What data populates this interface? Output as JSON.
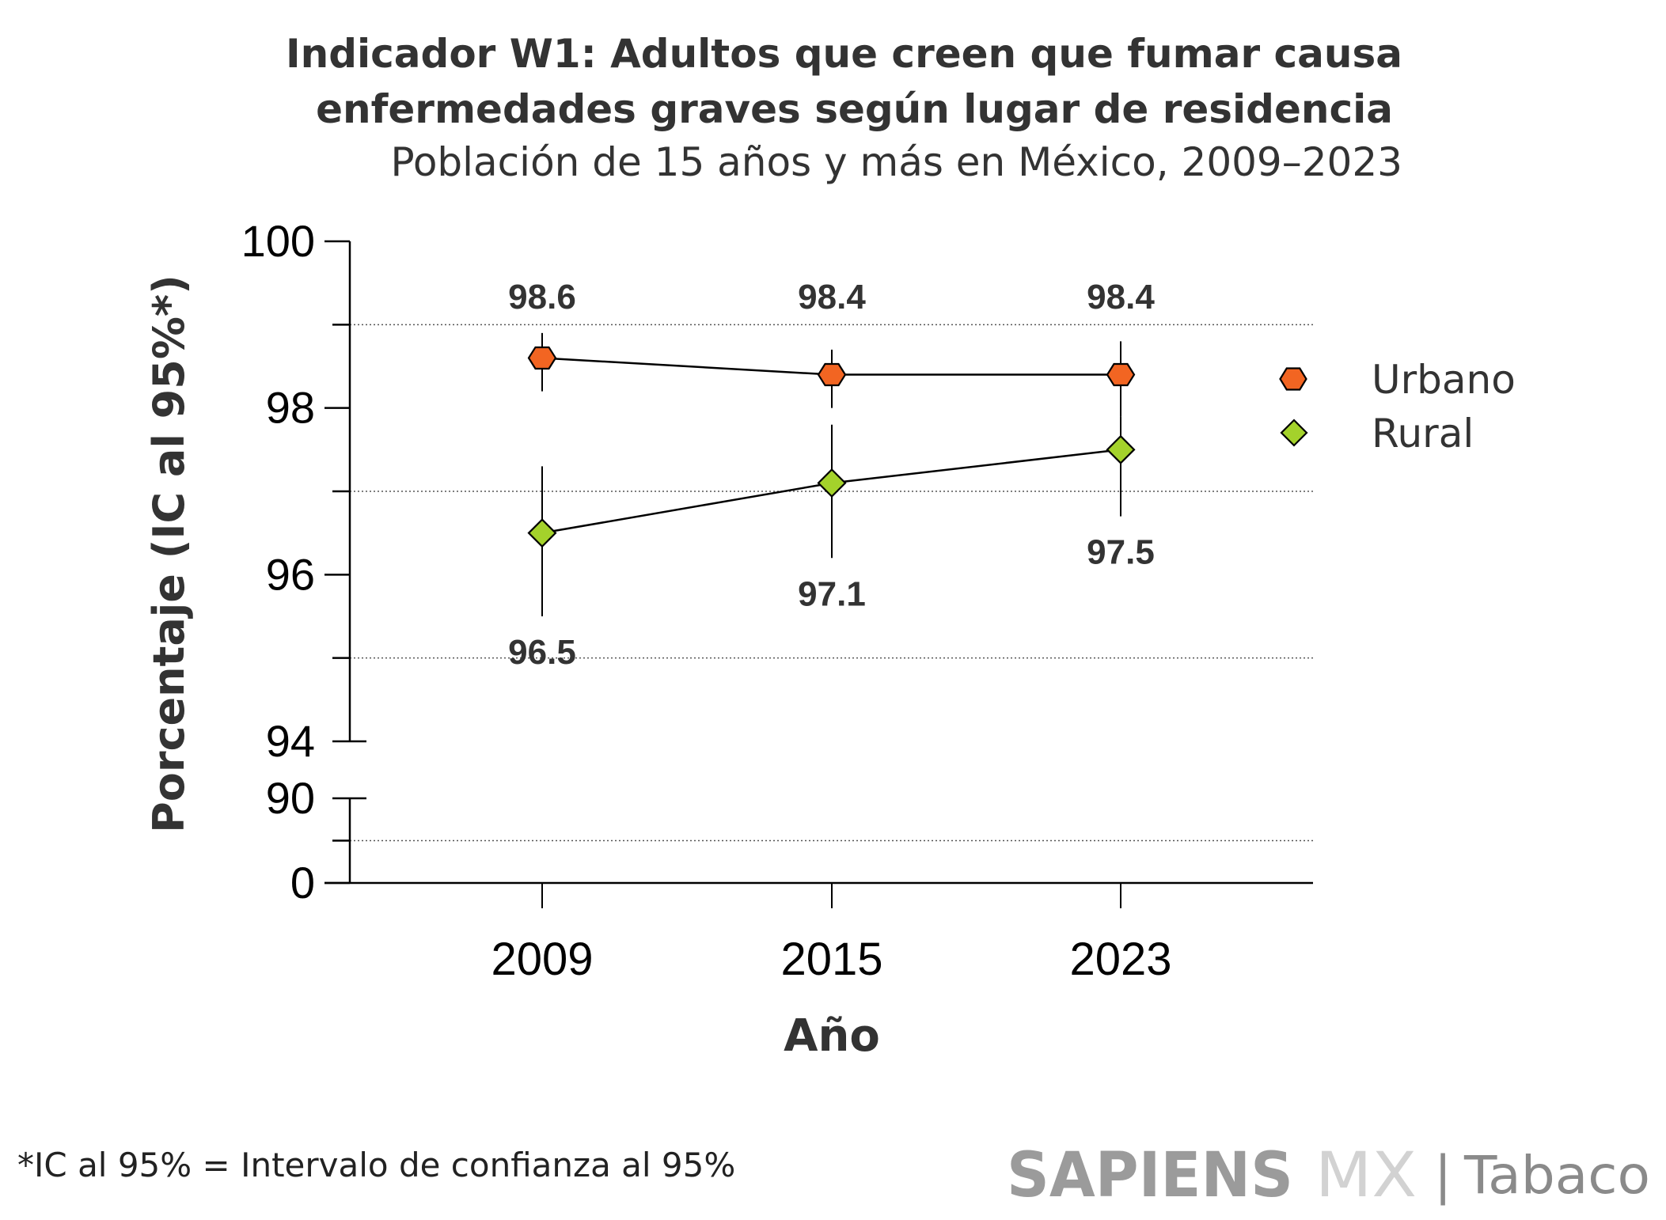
{
  "chart_data": {
    "type": "line",
    "title_lines": [
      "Indicador W1: Adultos que creen que fumar causa",
      "enfermedades graves según lugar de residencia"
    ],
    "subtitle": "Población de 15 años y más en México, 2009–2023",
    "xlabel": "Año",
    "ylabel": "Porcentaje (IC al 95%*)",
    "categories": [
      "2009",
      "2015",
      "2023"
    ],
    "y_axis": {
      "broken": true,
      "upper_segment": {
        "range": [
          94,
          100
        ],
        "ticks": [
          "94",
          "96",
          "98",
          "100"
        ],
        "minor_ticks": [
          95,
          97,
          99
        ]
      },
      "lower_segment": {
        "range": [
          0,
          90
        ],
        "ticks": [
          "0",
          "90"
        ]
      }
    },
    "grid": "dotted horizontal at minor ticks",
    "legend_position": "right",
    "series": [
      {
        "name": "Urbano",
        "marker": "hexagon",
        "color": "#F26522",
        "values": [
          98.6,
          98.4,
          98.4
        ],
        "ci_lower": [
          98.2,
          98.0,
          97.9
        ],
        "ci_upper": [
          98.9,
          98.7,
          98.8
        ],
        "labels": [
          "98.6",
          "98.4",
          "98.4"
        ],
        "label_position": "above"
      },
      {
        "name": "Rural",
        "marker": "diamond",
        "color": "#A4D22B",
        "values": [
          96.5,
          97.1,
          97.5
        ],
        "ci_lower": [
          95.5,
          96.2,
          96.7
        ],
        "ci_upper": [
          97.3,
          97.8,
          97.9
        ],
        "labels": [
          "96.5",
          "97.1",
          "97.5"
        ],
        "label_position": "below"
      }
    ]
  },
  "footer": {
    "footnote": "*IC al 95% = Intervalo de confianza al 95%",
    "brand_bold": "SAPIENS",
    "brand_light": "MX",
    "brand_separator": "|",
    "brand_section": "Tabaco"
  }
}
